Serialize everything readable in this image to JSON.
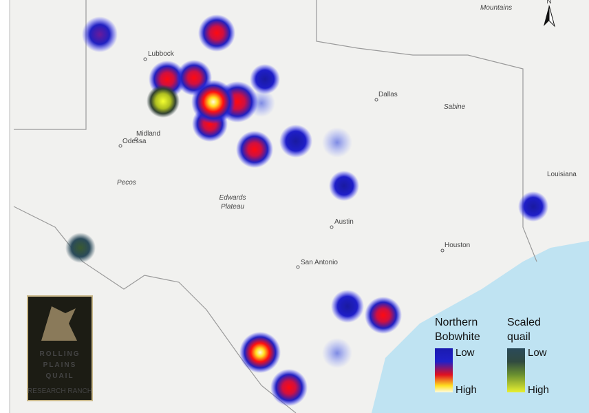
{
  "places": [
    "Lubbock",
    "Dallas",
    "Midland",
    "Odessa",
    "Edwards",
    "Plateau",
    "Austin",
    "Houston",
    "San Antonio",
    "Louisiana",
    "Sabine",
    "Pecos",
    "Mountains"
  ],
  "north": "N",
  "legend": {
    "bobwhite": {
      "title": "Northern Bobwhite",
      "low": "Low",
      "high": "High"
    },
    "scaled": {
      "title": "Scaled quail",
      "low": "Low",
      "high": "High"
    }
  },
  "logo": {
    "lines": [
      "ROLLING",
      "PLAINS",
      "QUAIL"
    ],
    "tagline": "RESEARCH RANCH"
  }
}
